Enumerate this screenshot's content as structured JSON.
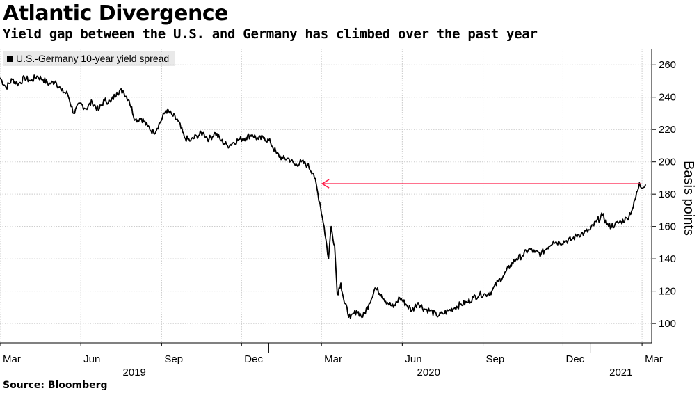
{
  "chart_data": {
    "type": "line",
    "title": "Atlantic Divergence",
    "subtitle": "Yield gap between the U.S. and Germany has climbed over the past year",
    "ylabel": "Basis points",
    "xlabel": "",
    "ylim": [
      88,
      270
    ],
    "yticks": [
      100,
      120,
      140,
      160,
      180,
      200,
      220,
      240,
      260
    ],
    "grid": true,
    "legend_position": "top-left",
    "x_month_ticks": [
      "Mar",
      "Jun",
      "Sep",
      "Dec",
      "Mar",
      "Jun",
      "Sep",
      "Dec",
      "Mar"
    ],
    "x_year_labels": [
      "2019",
      "2020",
      "2021"
    ],
    "series": [
      {
        "name": "U.S.-Germany 10-year yield spread",
        "color": "#000000",
        "points": [
          [
            "2019-03-01",
            252
          ],
          [
            "2019-03-08",
            246
          ],
          [
            "2019-03-15",
            251
          ],
          [
            "2019-03-22",
            248
          ],
          [
            "2019-03-29",
            252
          ],
          [
            "2019-04-05",
            250
          ],
          [
            "2019-04-12",
            253
          ],
          [
            "2019-04-19",
            251
          ],
          [
            "2019-04-26",
            248
          ],
          [
            "2019-05-03",
            250
          ],
          [
            "2019-05-10",
            244
          ],
          [
            "2019-05-17",
            242
          ],
          [
            "2019-05-24",
            230
          ],
          [
            "2019-05-31",
            236
          ],
          [
            "2019-06-07",
            233
          ],
          [
            "2019-06-14",
            237
          ],
          [
            "2019-06-21",
            232
          ],
          [
            "2019-06-28",
            238
          ],
          [
            "2019-07-05",
            237
          ],
          [
            "2019-07-12",
            243
          ],
          [
            "2019-07-19",
            244
          ],
          [
            "2019-07-26",
            238
          ],
          [
            "2019-08-02",
            226
          ],
          [
            "2019-08-09",
            227
          ],
          [
            "2019-08-16",
            222
          ],
          [
            "2019-08-23",
            218
          ],
          [
            "2019-08-30",
            224
          ],
          [
            "2019-09-06",
            232
          ],
          [
            "2019-09-13",
            229
          ],
          [
            "2019-09-20",
            225
          ],
          [
            "2019-09-27",
            215
          ],
          [
            "2019-10-04",
            213
          ],
          [
            "2019-10-11",
            216
          ],
          [
            "2019-10-18",
            218
          ],
          [
            "2019-10-25",
            214
          ],
          [
            "2019-11-01",
            218
          ],
          [
            "2019-11-08",
            213
          ],
          [
            "2019-11-15",
            210
          ],
          [
            "2019-11-22",
            212
          ],
          [
            "2019-11-29",
            214
          ],
          [
            "2019-12-06",
            215
          ],
          [
            "2019-12-13",
            217
          ],
          [
            "2019-12-20",
            214
          ],
          [
            "2019-12-27",
            215
          ],
          [
            "2020-01-03",
            212
          ],
          [
            "2020-01-10",
            205
          ],
          [
            "2020-01-17",
            202
          ],
          [
            "2020-01-24",
            202
          ],
          [
            "2020-01-31",
            198
          ],
          [
            "2020-02-07",
            200
          ],
          [
            "2020-02-14",
            198
          ],
          [
            "2020-02-21",
            193
          ],
          [
            "2020-02-28",
            175
          ],
          [
            "2020-03-04",
            160
          ],
          [
            "2020-03-09",
            140
          ],
          [
            "2020-03-12",
            160
          ],
          [
            "2020-03-16",
            148
          ],
          [
            "2020-03-19",
            118
          ],
          [
            "2020-03-23",
            125
          ],
          [
            "2020-03-27",
            113
          ],
          [
            "2020-04-03",
            103
          ],
          [
            "2020-04-10",
            108
          ],
          [
            "2020-04-17",
            104
          ],
          [
            "2020-04-24",
            112
          ],
          [
            "2020-05-01",
            122
          ],
          [
            "2020-05-08",
            118
          ],
          [
            "2020-05-15",
            113
          ],
          [
            "2020-05-22",
            110
          ],
          [
            "2020-05-29",
            116
          ],
          [
            "2020-06-05",
            112
          ],
          [
            "2020-06-12",
            108
          ],
          [
            "2020-06-19",
            113
          ],
          [
            "2020-06-26",
            109
          ],
          [
            "2020-07-03",
            108
          ],
          [
            "2020-07-10",
            105
          ],
          [
            "2020-07-17",
            106
          ],
          [
            "2020-07-24",
            108
          ],
          [
            "2020-07-31",
            110
          ],
          [
            "2020-08-07",
            112
          ],
          [
            "2020-08-14",
            113
          ],
          [
            "2020-08-21",
            116
          ],
          [
            "2020-08-28",
            118
          ],
          [
            "2020-09-04",
            118
          ],
          [
            "2020-09-11",
            120
          ],
          [
            "2020-09-18",
            126
          ],
          [
            "2020-09-25",
            130
          ],
          [
            "2020-10-02",
            136
          ],
          [
            "2020-10-09",
            140
          ],
          [
            "2020-10-16",
            142
          ],
          [
            "2020-10-23",
            146
          ],
          [
            "2020-10-30",
            144
          ],
          [
            "2020-11-06",
            143
          ],
          [
            "2020-11-13",
            147
          ],
          [
            "2020-11-20",
            151
          ],
          [
            "2020-11-27",
            150
          ],
          [
            "2020-12-04",
            151
          ],
          [
            "2020-12-11",
            152
          ],
          [
            "2020-12-18",
            155
          ],
          [
            "2020-12-25",
            156
          ],
          [
            "2021-01-01",
            158
          ],
          [
            "2021-01-08",
            163
          ],
          [
            "2021-01-15",
            167
          ],
          [
            "2021-01-22",
            160
          ],
          [
            "2021-01-29",
            161
          ],
          [
            "2021-02-05",
            163
          ],
          [
            "2021-02-12",
            165
          ],
          [
            "2021-02-19",
            172
          ],
          [
            "2021-02-26",
            187
          ],
          [
            "2021-03-02",
            184
          ],
          [
            "2021-03-05",
            186
          ]
        ]
      }
    ],
    "annotation": {
      "type": "arrow",
      "color": "#ff1f4b",
      "y_value": 186.5,
      "from_date": "2021-03-05",
      "to_date": "2020-02-26"
    }
  },
  "source": "Source: Bloomberg"
}
